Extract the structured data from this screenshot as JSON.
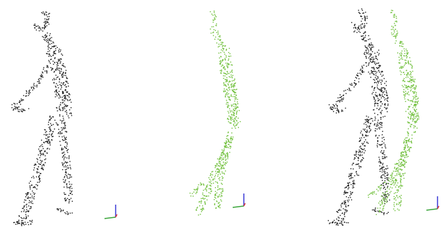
{
  "panels": [
    {
      "name": "source-point-cloud",
      "color": "#1a1a1a"
    },
    {
      "name": "target-point-cloud",
      "color": "#6fbf3a"
    },
    {
      "name": "overlay-point-cloud",
      "colors": [
        "#1a1a1a",
        "#6fbf3a"
      ]
    }
  ],
  "axis_gizmo": {
    "x_color": "#3aa53a",
    "y_color": "#3b3bd6",
    "z_color": "#d93a3a"
  },
  "background": "#ffffff"
}
